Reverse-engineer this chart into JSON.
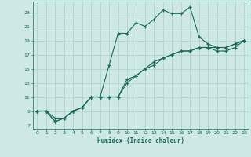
{
  "xlabel": "Humidex (Indice chaleur)",
  "bg_color": "#cde8e5",
  "grid_color": "#b0d4d0",
  "line_color": "#1a6b5a",
  "xlim": [
    -0.5,
    23.5
  ],
  "ylim": [
    6.5,
    24.5
  ],
  "xticks": [
    0,
    1,
    2,
    3,
    4,
    5,
    6,
    7,
    8,
    9,
    10,
    11,
    12,
    13,
    14,
    15,
    16,
    17,
    18,
    19,
    20,
    21,
    22,
    23
  ],
  "yticks": [
    7,
    9,
    11,
    13,
    15,
    17,
    19,
    21,
    23
  ],
  "line1_x": [
    0,
    1,
    2,
    3,
    4,
    5,
    6,
    7,
    8,
    9,
    10,
    11,
    12,
    13,
    14,
    15,
    16,
    17,
    18,
    19,
    20,
    21,
    22,
    23
  ],
  "line1_y": [
    9,
    9,
    8,
    8,
    9,
    9.5,
    11,
    11,
    15.5,
    20,
    20,
    21.5,
    21,
    22,
    23.3,
    22.8,
    22.8,
    23.7,
    19.5,
    18.5,
    18,
    18,
    18.5,
    19
  ],
  "line2_x": [
    0,
    1,
    2,
    3,
    4,
    5,
    6,
    7,
    8,
    9,
    10,
    11,
    12,
    13,
    14,
    15,
    16,
    17,
    18,
    19,
    20,
    21,
    22,
    23
  ],
  "line2_y": [
    9,
    9,
    7.5,
    8,
    9,
    9.5,
    11,
    11,
    11,
    11,
    13.5,
    14,
    15,
    15.5,
    16.5,
    17,
    17.5,
    17.5,
    18,
    18,
    17.5,
    17.5,
    18,
    19
  ],
  "line3_x": [
    0,
    1,
    2,
    3,
    4,
    5,
    6,
    7,
    8,
    9,
    10,
    11,
    12,
    13,
    14,
    15,
    16,
    17,
    18,
    19,
    20,
    21,
    22,
    23
  ],
  "line3_y": [
    9,
    9,
    7.5,
    8,
    9,
    9.5,
    11,
    11,
    11,
    11,
    13,
    14,
    15,
    16,
    16.5,
    17,
    17.5,
    17.5,
    18,
    18,
    18,
    18,
    18.5,
    19
  ]
}
